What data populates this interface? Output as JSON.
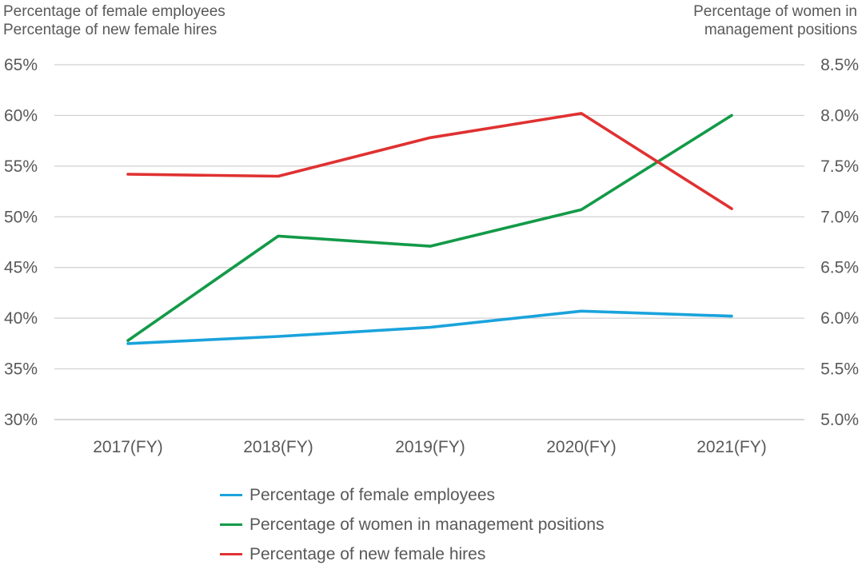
{
  "chart_data": {
    "type": "line",
    "categories": [
      "2017(FY)",
      "2018(FY)",
      "2019(FY)",
      "2020(FY)",
      "2021(FY)"
    ],
    "y_left": {
      "title": [
        "Percentage of female employees",
        "Percentage of new female hires"
      ],
      "ticks": [
        "65%",
        "60%",
        "55%",
        "50%",
        "45%",
        "40%",
        "35%",
        "30%"
      ],
      "range": [
        30,
        65
      ]
    },
    "y_right": {
      "title": [
        "Percentage of women in",
        "management positions"
      ],
      "ticks": [
        "8.5%",
        "8.0%",
        "7.5%",
        "7.0%",
        "6.5%",
        "6.0%",
        "5.5%",
        "5.0%"
      ],
      "range": [
        5.0,
        8.5
      ]
    },
    "series": [
      {
        "name": "Percentage of female employees",
        "axis": "left",
        "color": "#1aa3dc",
        "values": [
          37.5,
          38.2,
          39.1,
          40.7,
          40.2
        ]
      },
      {
        "name": "Percentage of women in management positions",
        "axis": "right",
        "color": "#139a48",
        "values": [
          5.78,
          6.81,
          6.71,
          7.07,
          8.0
        ]
      },
      {
        "name": "Percentage of new female hires",
        "axis": "left",
        "color": "#e03131",
        "values": [
          54.2,
          54.0,
          57.8,
          60.2,
          50.8
        ]
      }
    ],
    "grid": true,
    "legend_position": "bottom"
  }
}
